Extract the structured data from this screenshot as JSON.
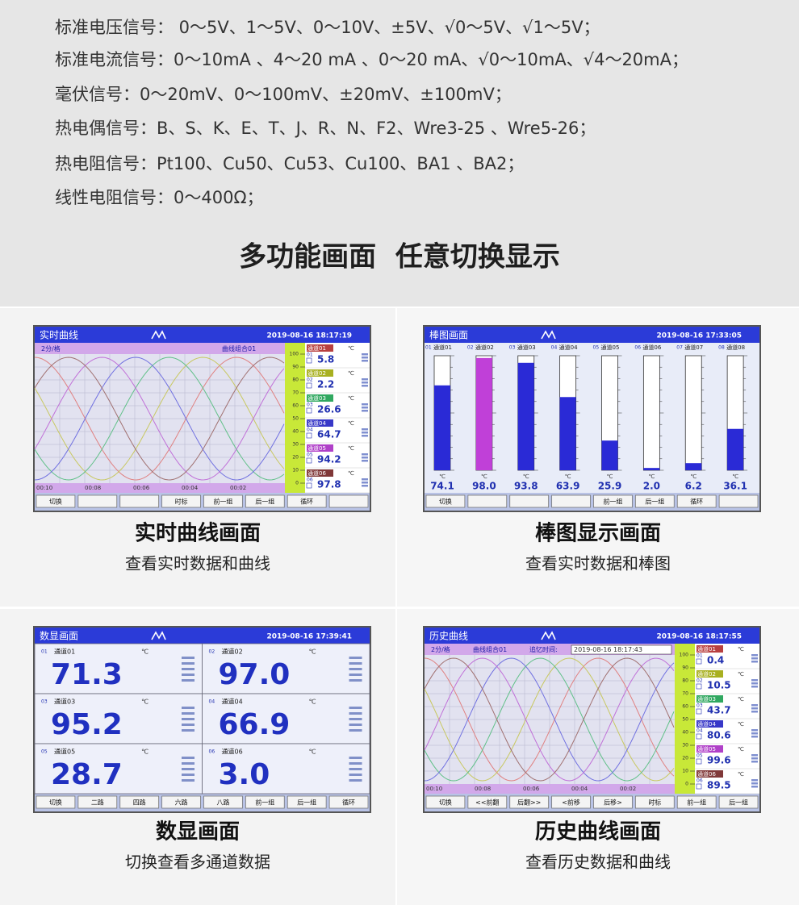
{
  "signals": [
    "标准电压信号： 0～5V、1～5V、0～10V、±5V、√0～5V、√1～5V；",
    "标准电流信号：0～10mA 、4～20 mA 、0～20 mA、√0～10mA、√4～20mA；",
    "毫伏信号：0～20mV、0～100mV、±20mV、±100mV；",
    "热电偶信号：B、S、K、E、T、J、R、N、F2、Wre3-25 、Wre5-26；",
    "热电阻信号：Pt100、Cu50、Cu53、Cu100、BA1 、BA2；",
    "线性电阻信号：0～400Ω；"
  ],
  "headline": "多功能画面  任意切换显示",
  "panels": [
    {
      "caption": "实时曲线画面",
      "subcaption": "查看实时数据和曲线",
      "screen": {
        "kind": "curve",
        "title": "实时曲线",
        "datetime": "2019-08-16 18:17:19",
        "interval": "2分/格",
        "group": "曲线组合01",
        "times": [
          "00:10",
          "00:08",
          "00:06",
          "00:04",
          "00:02"
        ],
        "scale": [
          100,
          90,
          80,
          70,
          60,
          50,
          40,
          30,
          20,
          10,
          0
        ],
        "unit": "℃",
        "channels": [
          {
            "id": "01",
            "name": "通道01",
            "value": "5.8"
          },
          {
            "id": "02",
            "name": "通道02",
            "value": "2.2"
          },
          {
            "id": "03",
            "name": "通道03",
            "value": "26.6"
          },
          {
            "id": "04",
            "name": "通道04",
            "value": "64.7"
          },
          {
            "id": "05",
            "name": "通道05",
            "value": "94.2"
          },
          {
            "id": "06",
            "name": "通道06",
            "value": "97.8"
          }
        ],
        "buttons": [
          "切换",
          "时标",
          "前一组",
          "后一组",
          "循环"
        ]
      }
    },
    {
      "caption": "棒图显示画面",
      "subcaption": "查看实时数据和棒图",
      "screen": {
        "kind": "bar",
        "title": "棒图画面",
        "datetime": "2019-08-16 17:33:05",
        "unit": "℃",
        "ylim": [
          0,
          100
        ],
        "channels": [
          {
            "id": "01",
            "name": "通道01",
            "value": 74.1,
            "label": "74.1",
            "color": "#2a2ad6"
          },
          {
            "id": "02",
            "name": "通道02",
            "value": 98,
            "label": "98.0",
            "color": "#c040d8"
          },
          {
            "id": "03",
            "name": "通道03",
            "value": 93.8,
            "label": "93.8",
            "color": "#2a2ad6"
          },
          {
            "id": "04",
            "name": "通道04",
            "value": 63.9,
            "label": "63.9",
            "color": "#2a2ad6"
          },
          {
            "id": "05",
            "name": "通道05",
            "value": 25.9,
            "label": "25.9",
            "color": "#2a2ad6"
          },
          {
            "id": "06",
            "name": "通道06",
            "value": 2,
            "label": "2.0",
            "color": "#2a2ad6"
          },
          {
            "id": "07",
            "name": "通道07",
            "value": 6.2,
            "label": "6.2",
            "color": "#2a2ad6"
          },
          {
            "id": "08",
            "name": "通道08",
            "value": 36.1,
            "label": "36.1",
            "color": "#2a2ad6"
          }
        ],
        "buttons": [
          "切换",
          "前一组",
          "后一组",
          "循环"
        ]
      }
    },
    {
      "caption": "数显画面",
      "subcaption": "切换查看多通道数据",
      "screen": {
        "kind": "digital",
        "title": "数显画面",
        "datetime": "2019-08-16 17:39:41",
        "unit": "℃",
        "channels": [
          {
            "id": "01",
            "name": "通道01",
            "value": "71.3"
          },
          {
            "id": "02",
            "name": "通道02",
            "value": "97.0"
          },
          {
            "id": "03",
            "name": "通道03",
            "value": "95.2"
          },
          {
            "id": "04",
            "name": "通道04",
            "value": "66.9"
          },
          {
            "id": "05",
            "name": "通道05",
            "value": "28.7"
          },
          {
            "id": "06",
            "name": "通道06",
            "value": "3.0"
          }
        ],
        "buttons": [
          "切换",
          "二路",
          "四路",
          "六路",
          "八路",
          "前一组",
          "后一组",
          "循环"
        ]
      }
    },
    {
      "caption": "历史曲线画面",
      "subcaption": "查看历史数据和曲线",
      "screen": {
        "kind": "curve",
        "title": "历史曲线",
        "datetime": "2019-08-16 18:17:55",
        "interval": "2分/格",
        "group": "曲线组合01",
        "recall_label": "追忆时间:",
        "recall_time": "2019-08-16 18:17:43",
        "times": [
          "00:10",
          "00:08",
          "00:06",
          "00:04",
          "00:02"
        ],
        "scale": [
          100,
          90,
          80,
          70,
          60,
          50,
          40,
          30,
          20,
          10,
          0
        ],
        "unit": "℃",
        "channels": [
          {
            "id": "01",
            "name": "通道01",
            "value": "0.4"
          },
          {
            "id": "02",
            "name": "通道02",
            "value": "10.5"
          },
          {
            "id": "03",
            "name": "通道03",
            "value": "43.7"
          },
          {
            "id": "04",
            "name": "通道04",
            "value": "80.6"
          },
          {
            "id": "05",
            "name": "通道05",
            "value": "99.6"
          },
          {
            "id": "06",
            "name": "通道06",
            "value": "89.5"
          }
        ],
        "buttons": [
          "切换",
          "<<前翻",
          "后翻>>",
          "<前移",
          "后移>",
          "时标",
          "前一组",
          "后一组"
        ]
      }
    }
  ]
}
